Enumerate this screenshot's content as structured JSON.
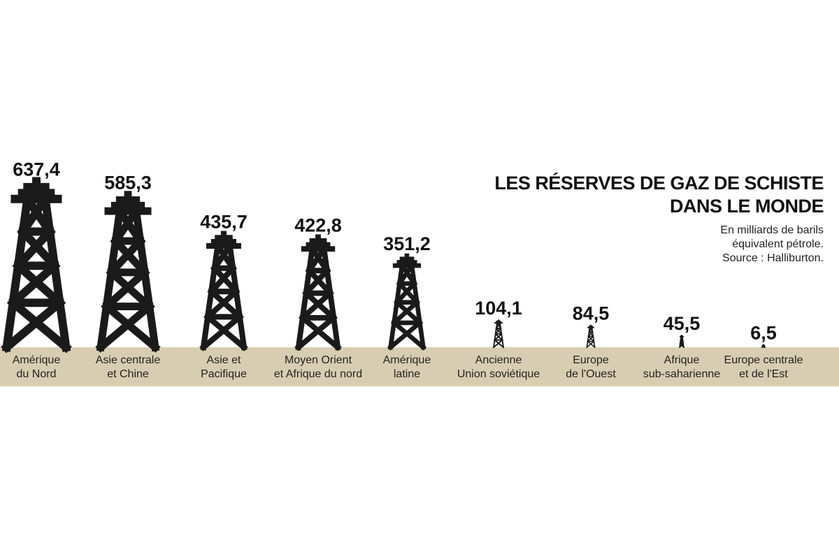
{
  "chart_data": {
    "type": "derrick",
    "title": "LES RÉSERVES DE GAZ DE SCHISTE\nDANS LE MONDE",
    "subtitle": "En milliards de barils\néquivalent pétrole.",
    "source": "Source : Halliburton.",
    "categories": [
      "Amérique\ndu Nord",
      "Asie centrale\net Chine",
      "Asie et\nPacifique",
      "Moyen Orient\net Afrique du nord",
      "Amérique\nlatine",
      "Ancienne\nUnion soviétique",
      "Europe\nde l'Ouest",
      "Afrique\nsub-saharienne",
      "Europe centrale\net de l'Est"
    ],
    "values": [
      637.4,
      585.3,
      435.7,
      422.8,
      351.2,
      104.1,
      84.5,
      45.5,
      6.5
    ],
    "value_labels": [
      "637,4",
      "585,3",
      "435,7",
      "422,8",
      "351,2",
      "104,1",
      "84,5",
      "45,5",
      "6,5"
    ],
    "color": "#1a1a1a",
    "ground_color": "#d9cdb1"
  }
}
